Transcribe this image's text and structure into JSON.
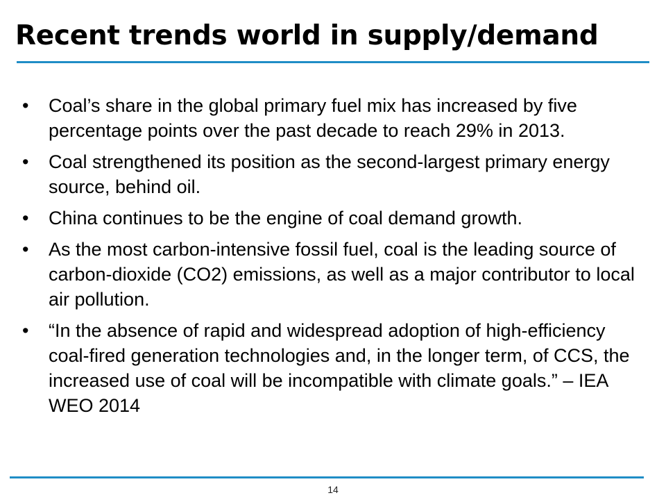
{
  "slide": {
    "title": "Recent trends world in supply/demand",
    "page_number": "14"
  },
  "bullets": [
    {
      "text": "Coal’s share in the global primary fuel mix has increased by five percentage points over the past decade to reach 29% in 2013."
    },
    {
      "text": "Coal strengthened its position as the second-largest primary energy source, behind oil."
    },
    {
      "text": "China continues to be the engine of coal demand growth."
    },
    {
      "text": "As the most carbon-intensive fossil fuel, coal is the leading source of carbon-dioxide (CO2) emissions, as well as a major contributor to local air pollution."
    },
    {
      "text": "“In the absence of rapid and widespread adoption of high-efficiency coal-fired generation technologies and, in the longer term, of CCS, the increased use of coal will be incompatible with climate goals.” – IEA WEO 2014"
    }
  ],
  "colors": {
    "accent_rule": "#1f8dc6",
    "text": "#000000"
  }
}
